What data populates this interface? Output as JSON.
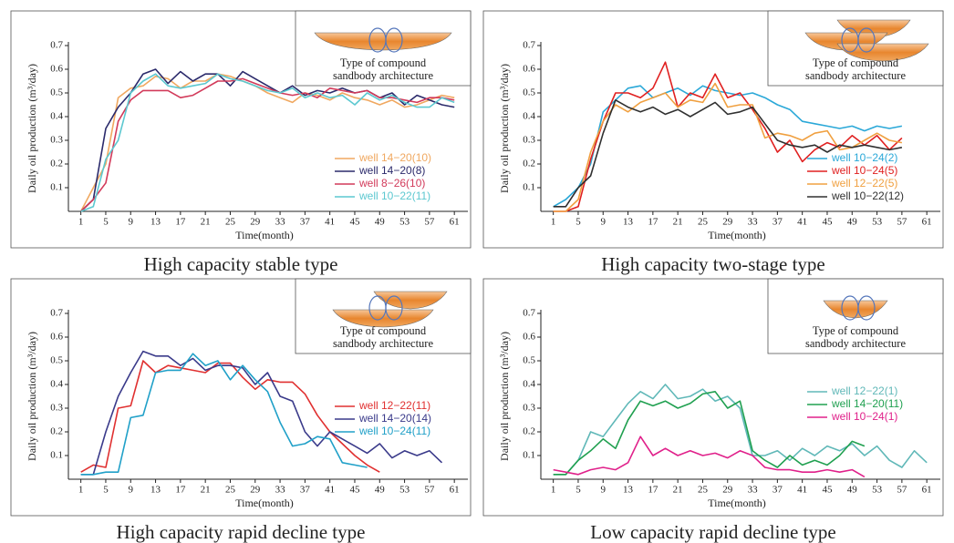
{
  "chart_data": [
    {
      "type": "line",
      "caption": "High capacity stable type",
      "inset_label": [
        "Type of compound",
        "sandbody architecture"
      ],
      "xlabel": "Time(month)",
      "ylabel": "Daily oil production (m³/day)",
      "xlim": [
        -1,
        62
      ],
      "ylim": [
        0,
        0.7
      ],
      "xticks": [
        1,
        5,
        9,
        13,
        17,
        21,
        25,
        29,
        33,
        37,
        41,
        45,
        49,
        53,
        57,
        61
      ],
      "yticks": [
        0.1,
        0.2,
        0.3,
        0.4,
        0.5,
        0.6,
        0.7
      ],
      "legend": "lower right",
      "series": [
        {
          "name": "well 14−20(10)",
          "color": "#f0a860",
          "x": [
            1,
            3,
            5,
            7,
            9,
            11,
            13,
            15,
            17,
            19,
            21,
            23,
            25,
            27,
            29,
            31,
            33,
            35,
            37,
            39,
            41,
            43,
            45,
            47,
            49,
            51,
            53,
            55,
            57,
            59,
            61
          ],
          "values": [
            0,
            0.1,
            0.2,
            0.48,
            0.52,
            0.53,
            0.57,
            0.56,
            0.52,
            0.55,
            0.55,
            0.58,
            0.57,
            0.55,
            0.53,
            0.5,
            0.48,
            0.46,
            0.5,
            0.49,
            0.47,
            0.5,
            0.48,
            0.47,
            0.45,
            0.47,
            0.44,
            0.45,
            0.47,
            0.49,
            0.48
          ]
        },
        {
          "name": "well 14−20(8)",
          "color": "#2b2a6b",
          "x": [
            1,
            3,
            5,
            7,
            9,
            11,
            13,
            15,
            17,
            19,
            21,
            23,
            25,
            27,
            29,
            31,
            33,
            35,
            37,
            39,
            41,
            43,
            45,
            47,
            49,
            51,
            53,
            55,
            57,
            59,
            61
          ],
          "values": [
            0,
            0.05,
            0.35,
            0.44,
            0.5,
            0.58,
            0.6,
            0.54,
            0.59,
            0.55,
            0.58,
            0.58,
            0.53,
            0.59,
            0.56,
            0.53,
            0.5,
            0.53,
            0.49,
            0.51,
            0.5,
            0.52,
            0.5,
            0.51,
            0.48,
            0.5,
            0.45,
            0.49,
            0.47,
            0.45,
            0.44
          ]
        },
        {
          "name": "well 8−26(10)",
          "color": "#d23a5a",
          "x": [
            1,
            3,
            5,
            7,
            9,
            11,
            13,
            15,
            17,
            19,
            21,
            23,
            25,
            27,
            29,
            31,
            33,
            35,
            37,
            39,
            41,
            43,
            45,
            47,
            49,
            51,
            53,
            55,
            57,
            59,
            61
          ],
          "values": [
            0,
            0.05,
            0.12,
            0.38,
            0.47,
            0.51,
            0.51,
            0.51,
            0.48,
            0.49,
            0.52,
            0.55,
            0.55,
            0.56,
            0.54,
            0.52,
            0.5,
            0.49,
            0.5,
            0.48,
            0.52,
            0.51,
            0.5,
            0.51,
            0.48,
            0.48,
            0.47,
            0.46,
            0.48,
            0.48,
            0.47
          ]
        },
        {
          "name": "well 10−22(11)",
          "color": "#5cc8d0",
          "x": [
            1,
            3,
            5,
            7,
            9,
            11,
            13,
            15,
            17,
            19,
            21,
            23,
            25,
            27,
            29,
            31,
            33,
            35,
            37,
            39,
            41,
            43,
            45,
            47,
            49,
            51,
            53,
            55,
            57,
            59,
            61
          ],
          "values": [
            0,
            0.02,
            0.22,
            0.3,
            0.5,
            0.55,
            0.58,
            0.53,
            0.52,
            0.53,
            0.54,
            0.58,
            0.56,
            0.55,
            0.53,
            0.51,
            0.5,
            0.52,
            0.48,
            0.5,
            0.48,
            0.49,
            0.45,
            0.5,
            0.47,
            0.49,
            0.46,
            0.44,
            0.44,
            0.48,
            0.46
          ]
        }
      ]
    },
    {
      "type": "line",
      "caption": "High capacity two-stage type",
      "inset_label": [
        "Type of compound",
        "sandbody architecture"
      ],
      "xlabel": "Time(month)",
      "ylabel": "Daily oil production (m³/day)",
      "xlim": [
        -1,
        62
      ],
      "ylim": [
        0,
        0.7
      ],
      "xticks": [
        1,
        5,
        9,
        13,
        17,
        21,
        25,
        29,
        33,
        37,
        41,
        45,
        49,
        53,
        57,
        61
      ],
      "yticks": [
        0.1,
        0.2,
        0.3,
        0.4,
        0.5,
        0.6,
        0.7
      ],
      "legend": "lower right",
      "series": [
        {
          "name": "well 10−24(2)",
          "color": "#2aa8d8",
          "x": [
            1,
            3,
            5,
            7,
            9,
            11,
            13,
            15,
            17,
            19,
            21,
            23,
            25,
            27,
            29,
            31,
            33,
            35,
            37,
            39,
            41,
            43,
            45,
            47,
            49,
            51,
            53,
            55,
            57
          ],
          "values": [
            0.02,
            0.05,
            0.1,
            0.2,
            0.42,
            0.47,
            0.52,
            0.53,
            0.48,
            0.5,
            0.52,
            0.49,
            0.53,
            0.51,
            0.5,
            0.49,
            0.5,
            0.48,
            0.45,
            0.43,
            0.38,
            0.37,
            0.36,
            0.35,
            0.36,
            0.34,
            0.36,
            0.35,
            0.36
          ]
        },
        {
          "name": "well 10−24(5)",
          "color": "#e02020",
          "x": [
            1,
            3,
            5,
            7,
            9,
            11,
            13,
            15,
            17,
            19,
            21,
            23,
            25,
            27,
            29,
            31,
            33,
            35,
            37,
            39,
            41,
            43,
            45,
            47,
            49,
            51,
            53,
            55,
            57
          ],
          "values": [
            0,
            0,
            0.02,
            0.22,
            0.38,
            0.5,
            0.5,
            0.48,
            0.52,
            0.63,
            0.44,
            0.5,
            0.48,
            0.58,
            0.48,
            0.5,
            0.43,
            0.35,
            0.25,
            0.3,
            0.21,
            0.26,
            0.29,
            0.27,
            0.32,
            0.28,
            0.32,
            0.26,
            0.31
          ]
        },
        {
          "name": "well 12−22(5)",
          "color": "#f0a040",
          "x": [
            1,
            3,
            5,
            7,
            9,
            11,
            13,
            15,
            17,
            19,
            21,
            23,
            25,
            27,
            29,
            31,
            33,
            35,
            37,
            39,
            41,
            43,
            45,
            47,
            49,
            51,
            53,
            55,
            57
          ],
          "values": [
            0,
            0,
            0.05,
            0.25,
            0.38,
            0.45,
            0.42,
            0.46,
            0.48,
            0.5,
            0.44,
            0.47,
            0.46,
            0.54,
            0.44,
            0.45,
            0.45,
            0.31,
            0.33,
            0.32,
            0.3,
            0.33,
            0.34,
            0.26,
            0.27,
            0.3,
            0.33,
            0.3,
            0.29
          ]
        },
        {
          "name": "well 10−22(12)",
          "color": "#303030",
          "x": [
            1,
            3,
            5,
            7,
            9,
            11,
            13,
            15,
            17,
            19,
            21,
            23,
            25,
            27,
            29,
            31,
            33,
            35,
            37,
            39,
            41,
            43,
            45,
            47,
            49,
            51,
            53,
            55,
            57
          ],
          "values": [
            0.02,
            0.02,
            0.1,
            0.15,
            0.33,
            0.47,
            0.44,
            0.42,
            0.44,
            0.41,
            0.43,
            0.4,
            0.43,
            0.46,
            0.41,
            0.42,
            0.44,
            0.37,
            0.3,
            0.28,
            0.27,
            0.28,
            0.25,
            0.28,
            0.27,
            0.28,
            0.27,
            0.26,
            0.27
          ]
        }
      ]
    },
    {
      "type": "line",
      "caption": "High capacity rapid decline type",
      "inset_label": [
        "Type of compound",
        "sandbody architecture"
      ],
      "xlabel": "Time(month)",
      "ylabel": "Daily oil production (m³/day)",
      "xlim": [
        -1,
        62
      ],
      "ylim": [
        0,
        0.7
      ],
      "xticks": [
        1,
        5,
        9,
        13,
        17,
        21,
        25,
        29,
        33,
        37,
        41,
        45,
        49,
        53,
        57,
        61
      ],
      "yticks": [
        0.1,
        0.2,
        0.3,
        0.4,
        0.5,
        0.6,
        0.7
      ],
      "legend": "right",
      "series": [
        {
          "name": "well 12−22(11)",
          "color": "#e03030",
          "x": [
            1,
            3,
            5,
            7,
            9,
            11,
            13,
            15,
            17,
            19,
            21,
            23,
            25,
            27,
            29,
            31,
            33,
            35,
            37,
            39,
            41,
            43,
            45,
            47,
            49
          ],
          "values": [
            0.03,
            0.06,
            0.05,
            0.3,
            0.31,
            0.5,
            0.45,
            0.48,
            0.47,
            0.46,
            0.45,
            0.49,
            0.49,
            0.43,
            0.38,
            0.42,
            0.41,
            0.41,
            0.36,
            0.27,
            0.2,
            0.15,
            0.1,
            0.06,
            0.03
          ]
        },
        {
          "name": "well 14−20(14)",
          "color": "#3a3a8a",
          "x": [
            1,
            3,
            5,
            7,
            9,
            11,
            13,
            15,
            17,
            19,
            21,
            23,
            25,
            27,
            29,
            31,
            33,
            35,
            37,
            39,
            41,
            43,
            45,
            47,
            49,
            51,
            53,
            55,
            57,
            59
          ],
          "values": [
            0.02,
            0.02,
            0.2,
            0.35,
            0.45,
            0.54,
            0.52,
            0.52,
            0.48,
            0.51,
            0.46,
            0.48,
            0.48,
            0.47,
            0.4,
            0.45,
            0.35,
            0.33,
            0.2,
            0.14,
            0.2,
            0.17,
            0.14,
            0.11,
            0.15,
            0.09,
            0.12,
            0.1,
            0.12,
            0.07
          ]
        },
        {
          "name": "well 10−24(11)",
          "color": "#20a0c8",
          "x": [
            1,
            3,
            5,
            7,
            9,
            11,
            13,
            15,
            17,
            19,
            21,
            23,
            25,
            27,
            29,
            31,
            33,
            35,
            37,
            39,
            41,
            43,
            45,
            47
          ],
          "values": [
            0.02,
            0.02,
            0.03,
            0.03,
            0.26,
            0.27,
            0.45,
            0.46,
            0.46,
            0.53,
            0.48,
            0.5,
            0.42,
            0.48,
            0.42,
            0.37,
            0.24,
            0.14,
            0.15,
            0.18,
            0.17,
            0.07,
            0.06,
            0.05
          ]
        }
      ]
    },
    {
      "type": "line",
      "caption": "Low capacity rapid decline type",
      "inset_label": [
        "Type of compound",
        "sandbody architecture"
      ],
      "xlabel": "Time(month)",
      "ylabel": "Daily oil production (m³/day)",
      "xlim": [
        -1,
        62
      ],
      "ylim": [
        0,
        0.7
      ],
      "xticks": [
        1,
        5,
        9,
        13,
        17,
        21,
        25,
        29,
        33,
        37,
        41,
        45,
        49,
        53,
        57,
        61
      ],
      "yticks": [
        0.1,
        0.2,
        0.3,
        0.4,
        0.5,
        0.6,
        0.7
      ],
      "legend": "upper right",
      "series": [
        {
          "name": "well 12−22(1)",
          "color": "#60b8b8",
          "x": [
            1,
            3,
            5,
            7,
            9,
            11,
            13,
            15,
            17,
            19,
            21,
            23,
            25,
            27,
            29,
            31,
            33,
            35,
            37,
            39,
            41,
            43,
            45,
            47,
            49,
            51,
            53,
            55,
            57,
            59,
            61
          ],
          "values": [
            0.02,
            0.02,
            0.08,
            0.2,
            0.18,
            0.25,
            0.32,
            0.37,
            0.34,
            0.4,
            0.34,
            0.35,
            0.38,
            0.33,
            0.35,
            0.3,
            0.1,
            0.1,
            0.12,
            0.08,
            0.13,
            0.1,
            0.14,
            0.12,
            0.15,
            0.1,
            0.14,
            0.08,
            0.05,
            0.12,
            0.07
          ]
        },
        {
          "name": "well 14−20(11)",
          "color": "#20a050",
          "x": [
            1,
            3,
            5,
            7,
            9,
            11,
            13,
            15,
            17,
            19,
            21,
            23,
            25,
            27,
            29,
            31,
            33,
            35,
            37,
            39,
            41,
            43,
            45,
            47,
            49,
            51
          ],
          "values": [
            0.02,
            0.02,
            0.08,
            0.12,
            0.17,
            0.13,
            0.25,
            0.33,
            0.31,
            0.33,
            0.3,
            0.32,
            0.36,
            0.37,
            0.3,
            0.33,
            0.12,
            0.08,
            0.05,
            0.1,
            0.06,
            0.08,
            0.06,
            0.1,
            0.16,
            0.14
          ]
        },
        {
          "name": "well 10−24(1)",
          "color": "#e0208a",
          "x": [
            1,
            3,
            5,
            7,
            9,
            11,
            13,
            15,
            17,
            19,
            21,
            23,
            25,
            27,
            29,
            31,
            33,
            35,
            37,
            39,
            41,
            43,
            45,
            47,
            49,
            51
          ],
          "values": [
            0.04,
            0.03,
            0.02,
            0.04,
            0.05,
            0.04,
            0.07,
            0.18,
            0.1,
            0.13,
            0.1,
            0.12,
            0.1,
            0.11,
            0.09,
            0.12,
            0.1,
            0.05,
            0.04,
            0.04,
            0.03,
            0.03,
            0.04,
            0.03,
            0.04,
            0.01
          ]
        }
      ]
    }
  ]
}
